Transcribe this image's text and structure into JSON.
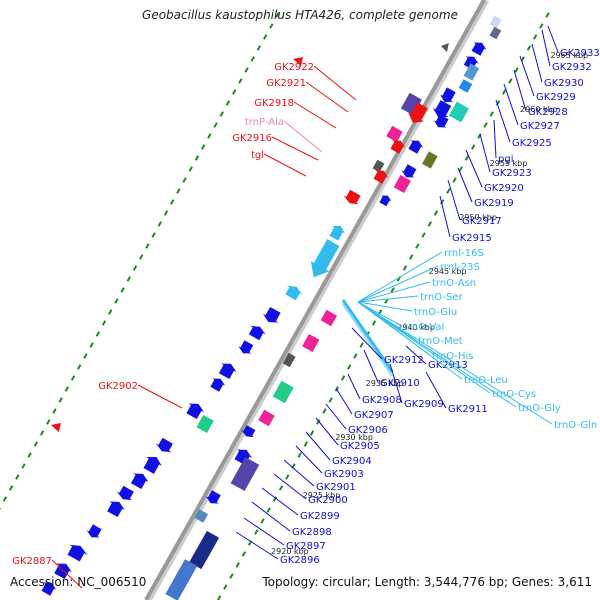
{
  "title": "Geobacillus kaustophilus HTA426, complete genome",
  "accession": "Accession: NC_006510",
  "topology": "Topology: circular; Length: 3,544,776 bp; Genes: 3,611",
  "colors": {
    "backbone": "#999999",
    "dots": "#1a8a1a",
    "cds": "#1010e0",
    "pseudo": "#ee1111",
    "trna": "#ff99cc",
    "rrna": "#33bbee",
    "misc_pink": "#ee2299",
    "misc_teal": "#22ccbb",
    "misc_purple": "#5544aa",
    "misc_green": "#22cc88",
    "misc_olive": "#667722",
    "misc_orange": "#ee8822",
    "label_blue": "#1010d0",
    "label_red": "#ee1111",
    "label_pink": "#ee88aa",
    "label_cyan": "#33bbee"
  },
  "scale_ticks": [
    "2965 kbp",
    "2960 kbp",
    "2955 kbp",
    "2950 kbp",
    "2945 kbp",
    "2940 kbp",
    "2935 kbp",
    "2930 kbp",
    "2925 kbp",
    "2920 kbp"
  ],
  "labels_right_blue": [
    "GK2933",
    "GK2932",
    "GK2930",
    "GK2929",
    "GK2928",
    "GK2927",
    "GK2925",
    "pgi",
    "GK2923",
    "GK2920",
    "GK2919",
    "GK2917",
    "GK2915",
    "GK2912",
    "GK2913",
    "GK2910",
    "GK2909",
    "GK2911",
    "GK2908",
    "GK2907",
    "GK2906",
    "GK2905",
    "GK2904",
    "GK2903",
    "GK2901",
    "GK2900",
    "GK2899",
    "GK2898",
    "GK2897",
    "GK2896"
  ],
  "labels_right_cyan": [
    "rrnI-16S",
    "rrnI-23S",
    "trnO-Asn",
    "trnO-Ser",
    "trnO-Glu",
    "trnO-Val",
    "trnO-Met",
    "trnO-His",
    "trnO-Leu",
    "trnO-Cys",
    "trnO-Gly",
    "trnO-Gln"
  ],
  "labels_left": [
    {
      "text": "GK2922",
      "color": "red"
    },
    {
      "text": "GK2921",
      "color": "red"
    },
    {
      "text": "GK2918",
      "color": "red"
    },
    {
      "text": "trnP-Ala",
      "color": "pink"
    },
    {
      "text": "GK2916",
      "color": "red"
    },
    {
      "text": "tgl",
      "color": "red"
    },
    {
      "text": "GK2902",
      "color": "red"
    },
    {
      "text": "GK2887",
      "color": "red"
    }
  ]
}
